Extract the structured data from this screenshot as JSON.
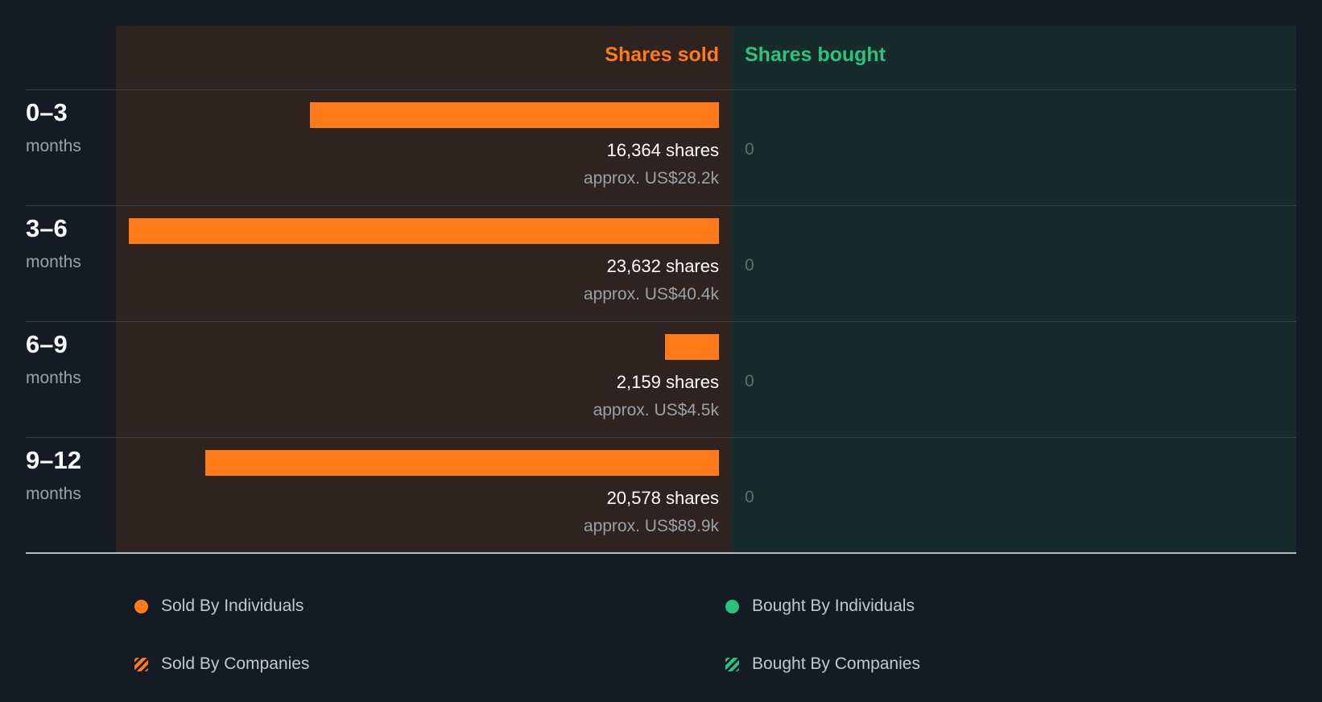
{
  "chart_data": {
    "type": "bar",
    "headers": {
      "sold": "Shares sold",
      "bought": "Shares bought"
    },
    "max_shares": 23632,
    "rows": [
      {
        "period": "0–3",
        "unit": "months",
        "sold_shares": 16364,
        "sold_label": "16,364 shares",
        "sold_value": "approx. US$28.2k",
        "bought": "0"
      },
      {
        "period": "3–6",
        "unit": "months",
        "sold_shares": 23632,
        "sold_label": "23,632 shares",
        "sold_value": "approx. US$40.4k",
        "bought": "0"
      },
      {
        "period": "6–9",
        "unit": "months",
        "sold_shares": 2159,
        "sold_label": "2,159 shares",
        "sold_value": "approx. US$4.5k",
        "bought": "0"
      },
      {
        "period": "9–12",
        "unit": "months",
        "sold_shares": 20578,
        "sold_label": "20,578 shares",
        "sold_value": "approx. US$89.9k",
        "bought": "0"
      }
    ],
    "legend": [
      {
        "label": "Sold By Individuals",
        "color": "#ff7a1a",
        "style": "dot"
      },
      {
        "label": "Bought By Individuals",
        "color": "#2ec27e",
        "style": "dot"
      },
      {
        "label": "Sold By Companies",
        "color": "#ff7a1a",
        "style": "hatched"
      },
      {
        "label": "Bought By Companies",
        "color": "#2ec27e",
        "style": "hatched"
      }
    ]
  }
}
